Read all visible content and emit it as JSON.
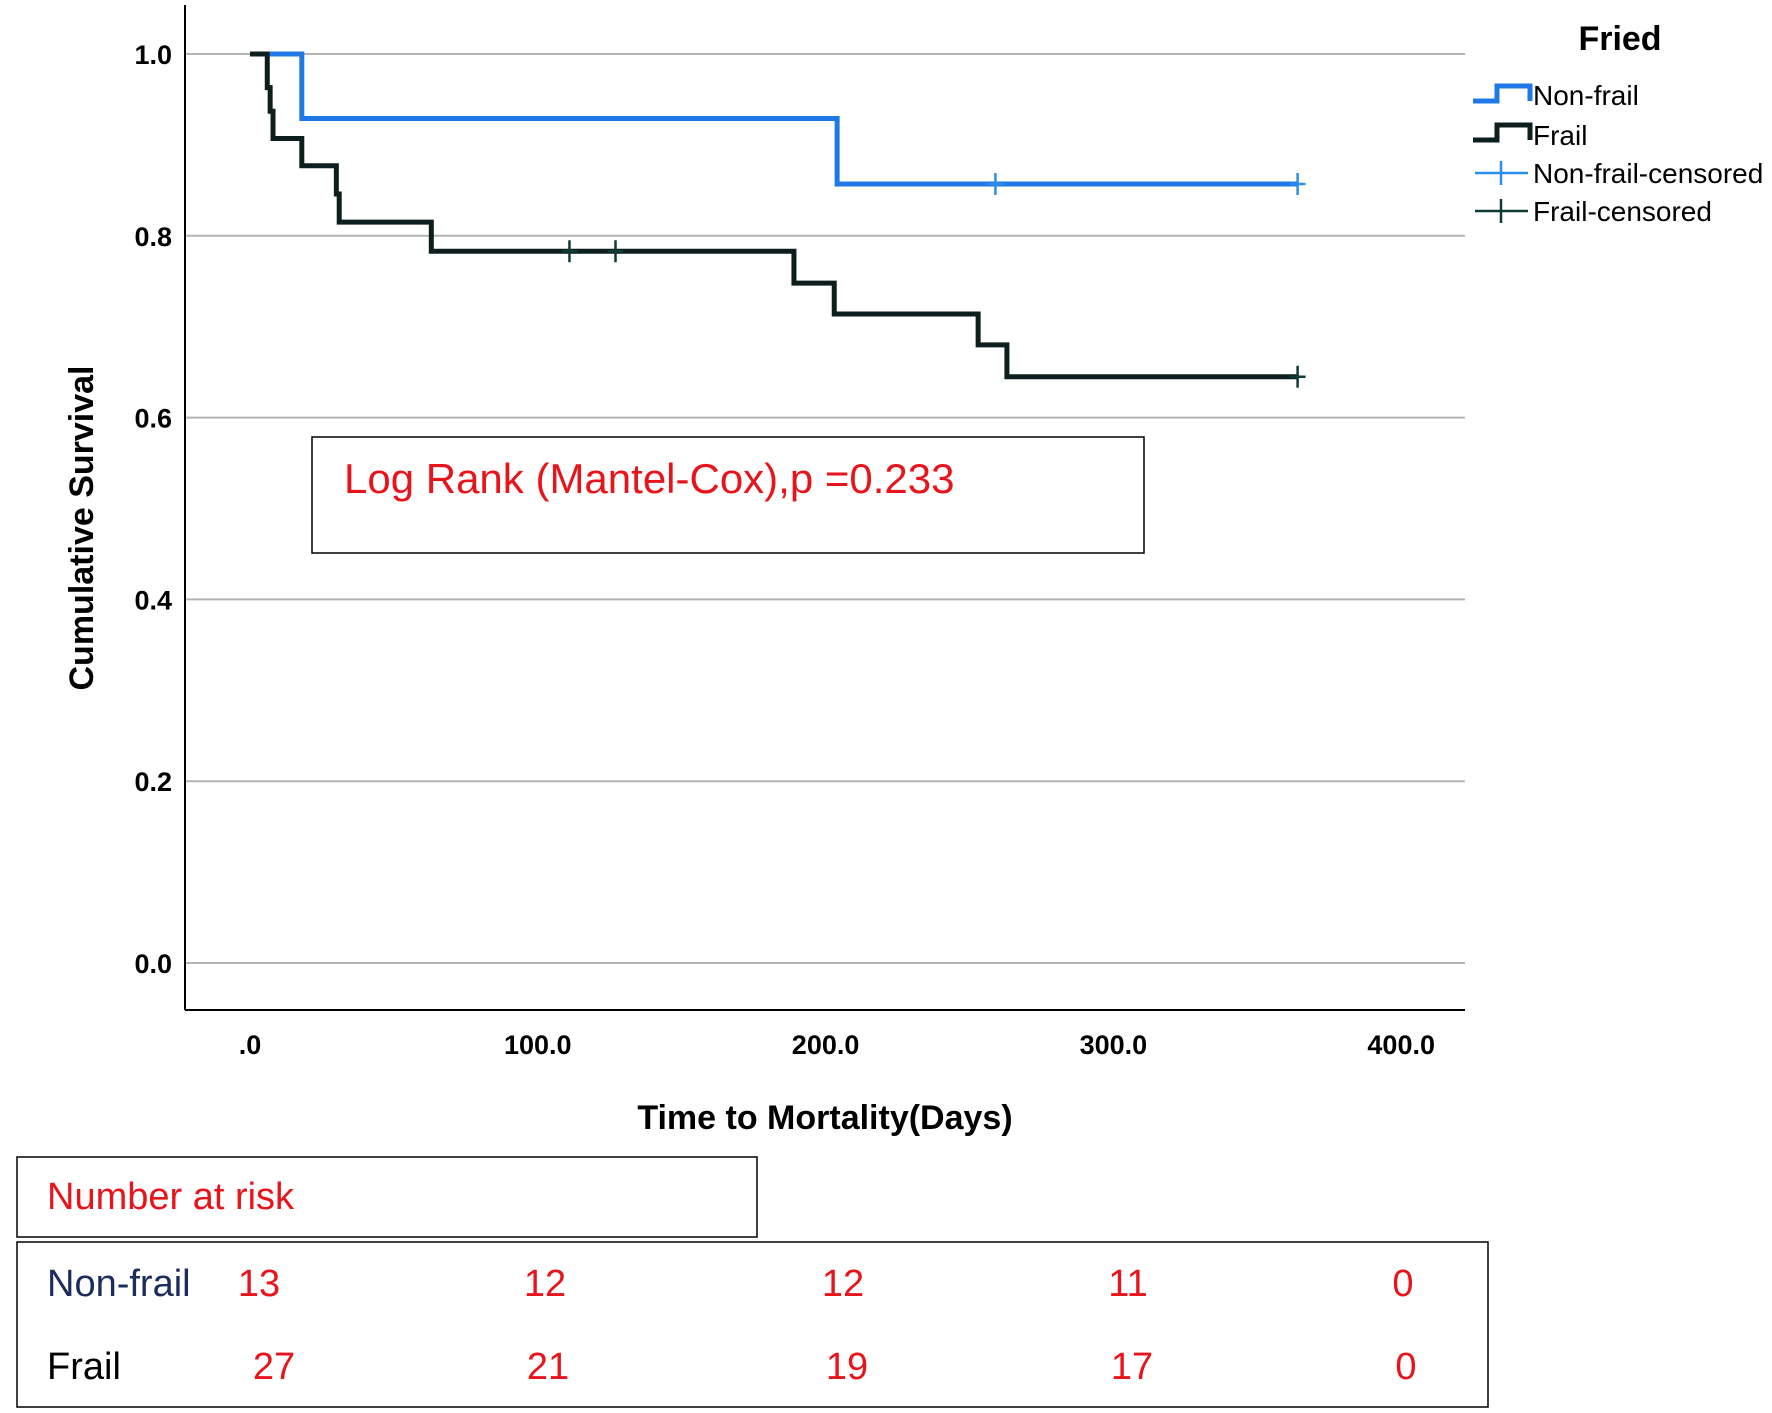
{
  "chart_data": {
    "type": "line",
    "subtype": "kaplan-meier step survival curve",
    "xlabel": "Time to Mortality(Days)",
    "ylabel": "Cumulative Survival",
    "xlim": [
      -23,
      420
    ],
    "ylim": [
      -0.05,
      1.05
    ],
    "x_ticks": [
      0,
      100,
      200,
      300,
      400
    ],
    "x_tick_labels": [
      ".0",
      "100.0",
      "200.0",
      "300.0",
      "400.0"
    ],
    "y_ticks": [
      0,
      0.2,
      0.4,
      0.6,
      0.8,
      1.0
    ],
    "y_tick_labels": [
      "0.0",
      "0.2",
      "0.4",
      "0.6",
      "0.8",
      "1.0"
    ],
    "grid": "horizontal",
    "legend": {
      "title": "Fried",
      "placement": "top-right outside plot",
      "entries": [
        "Non-frail",
        "Frail",
        "Non-frail-censored",
        "Frail-censored"
      ]
    },
    "series": [
      {
        "name": "Non-frail",
        "color": "#1f78e6",
        "censor_color": "#2a8ef0",
        "steps": [
          [
            0,
            1.0
          ],
          [
            18,
            0.929
          ],
          [
            204,
            0.857
          ],
          [
            364,
            0.857
          ]
        ],
        "censored": [
          [
            259,
            0.857
          ],
          [
            364,
            0.857
          ]
        ]
      },
      {
        "name": "Frail",
        "color": "#0d1f1c",
        "censor_color": "#0d3b36",
        "steps": [
          [
            0,
            1.0
          ],
          [
            6,
            0.963
          ],
          [
            7,
            0.937
          ],
          [
            8,
            0.907
          ],
          [
            18,
            0.877
          ],
          [
            30,
            0.846
          ],
          [
            31,
            0.815
          ],
          [
            63,
            0.783
          ],
          [
            189,
            0.748
          ],
          [
            203,
            0.714
          ],
          [
            253,
            0.68
          ],
          [
            263,
            0.645
          ],
          [
            364,
            0.645
          ]
        ],
        "censored": [
          [
            111,
            0.783
          ],
          [
            127,
            0.783
          ],
          [
            364,
            0.645
          ]
        ]
      }
    ],
    "annotation": "Log Rank (Mantel-Cox),p =0.233",
    "risk_table": {
      "title": "Number at risk",
      "rows": [
        {
          "label": "Non-frail",
          "label_color": "#1a2d5c",
          "values": [
            "13",
            "12",
            "12",
            "11",
            "0"
          ]
        },
        {
          "label": "Frail",
          "label_color": "#000000",
          "values": [
            "27",
            "21",
            "19",
            "17",
            "0"
          ]
        }
      ]
    }
  }
}
